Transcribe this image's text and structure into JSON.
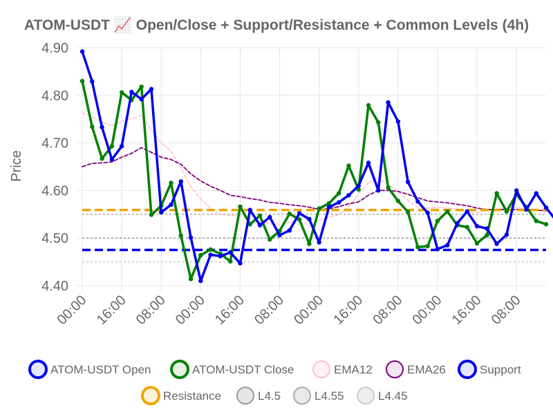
{
  "chart_data": {
    "type": "line",
    "title": "ATOM-USDT 📈 Open/Close + Support/Resistance + Common Levels (4h)",
    "xlabel": "",
    "ylabel": "Price",
    "ylim": [
      4.4,
      4.9
    ],
    "yticks": [
      "4.40",
      "4.50",
      "4.60",
      "4.70",
      "4.80",
      "4.90"
    ],
    "xtick_labels": [
      "00:00",
      "16:00",
      "08:00",
      "00:00",
      "16:00",
      "08:00",
      "00:00",
      "16:00",
      "08:00",
      "00:00",
      "16:00",
      "08:00"
    ],
    "xtick_indices": [
      0,
      4,
      8,
      12,
      16,
      20,
      24,
      28,
      32,
      36,
      40,
      44
    ],
    "grid": true,
    "legend_position": "bottom",
    "series": [
      {
        "name": "ATOM-USDT Open",
        "color": "#0000ee",
        "style": "solid-markers",
        "values": [
          4.892,
          4.829,
          4.733,
          4.665,
          4.693,
          4.807,
          4.792,
          4.813,
          4.554,
          4.57,
          4.619,
          4.501,
          4.41,
          4.465,
          4.462,
          4.47,
          4.447,
          4.559,
          4.527,
          4.544,
          4.506,
          4.516,
          4.552,
          4.54,
          4.491,
          4.565,
          4.575,
          4.59,
          4.61,
          4.658,
          4.6,
          4.785,
          4.745,
          4.618,
          4.577,
          4.553,
          4.477,
          4.485,
          4.531,
          4.556,
          4.525,
          4.52,
          4.488,
          4.507,
          4.6,
          4.56,
          4.594,
          4.564,
          4.537
        ]
      },
      {
        "name": "ATOM-USDT Close",
        "color": "#008000",
        "style": "solid-markers",
        "values": [
          4.83,
          4.734,
          4.667,
          4.693,
          4.806,
          4.79,
          4.818,
          4.549,
          4.568,
          4.616,
          4.505,
          4.414,
          4.464,
          4.476,
          4.467,
          4.451,
          4.566,
          4.529,
          4.547,
          4.497,
          4.515,
          4.551,
          4.539,
          4.488,
          4.562,
          4.573,
          4.594,
          4.652,
          4.602,
          4.779,
          4.743,
          4.606,
          4.578,
          4.555,
          4.481,
          4.483,
          4.536,
          4.556,
          4.527,
          4.523,
          4.489,
          4.506,
          4.594,
          4.556,
          4.592,
          4.565,
          4.536,
          4.529
        ]
      },
      {
        "name": "EMA12",
        "color": "#ffc0cb",
        "style": "dashed",
        "values": [
          4.763,
          4.756,
          4.743,
          4.736,
          4.746,
          4.751,
          4.758,
          4.727,
          4.7,
          4.683,
          4.647,
          4.608,
          4.582,
          4.563,
          4.549,
          4.548,
          4.546,
          4.54,
          4.535,
          4.53,
          4.529,
          4.532,
          4.529,
          4.534,
          4.537,
          4.545,
          4.549,
          4.565,
          4.593,
          4.616,
          4.625,
          4.612,
          4.598,
          4.579,
          4.565,
          4.563,
          4.565,
          4.563,
          4.56,
          4.554,
          4.554,
          4.559,
          4.559,
          4.564,
          4.564,
          4.561,
          4.56
        ]
      },
      {
        "name": "EMA26",
        "color": "#800080",
        "style": "dashed",
        "values": [
          4.65,
          4.657,
          4.658,
          4.66,
          4.67,
          4.678,
          4.69,
          4.68,
          4.67,
          4.665,
          4.655,
          4.635,
          4.62,
          4.609,
          4.6,
          4.59,
          4.587,
          4.583,
          4.58,
          4.575,
          4.573,
          4.57,
          4.568,
          4.565,
          4.56,
          4.562,
          4.566,
          4.572,
          4.576,
          4.59,
          4.6,
          4.6,
          4.598,
          4.592,
          4.585,
          4.578,
          4.576,
          4.574,
          4.571,
          4.568,
          4.563,
          4.56,
          4.56,
          4.56,
          4.56,
          4.56,
          4.559,
          4.557
        ]
      },
      {
        "name": "Support",
        "color": "#0000ee",
        "style": "thick-dashed",
        "level": 4.475
      },
      {
        "name": "Resistance",
        "color": "#f0a500",
        "style": "thick-dashed",
        "level": 4.559
      },
      {
        "name": "L4.5",
        "color": "#999999",
        "style": "dotted",
        "level": 4.5
      },
      {
        "name": "L4.55",
        "color": "#aaaaaa",
        "style": "dotted",
        "level": 4.55
      },
      {
        "name": "L4.45",
        "color": "#cccccc",
        "style": "dotted",
        "level": 4.45
      }
    ]
  }
}
